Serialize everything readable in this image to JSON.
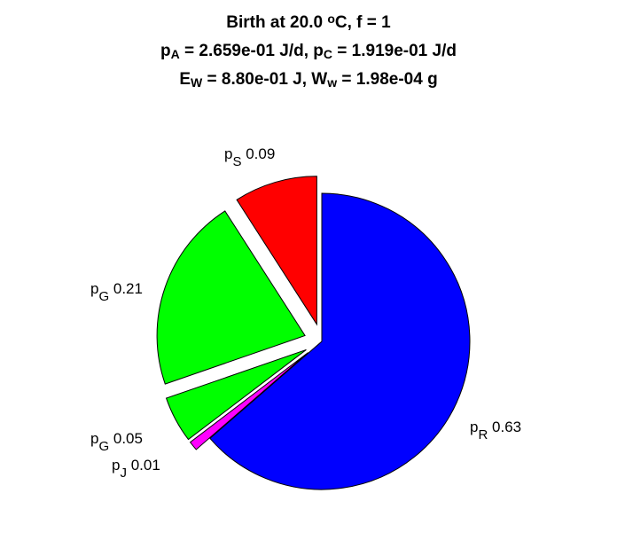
{
  "chart_data": {
    "type": "pie",
    "title_lines": [
      [
        {
          "t": "Birth at 20.0 "
        },
        {
          "t": "o",
          "sup": true
        },
        {
          "t": "C, f = 1"
        }
      ],
      [
        {
          "t": "p"
        },
        {
          "t": "A",
          "sub": true
        },
        {
          "t": " = 2.659e-01 J/d, p"
        },
        {
          "t": "C",
          "sub": true
        },
        {
          "t": " = 1.919e-01 J/d"
        }
      ],
      [
        {
          "t": "E"
        },
        {
          "t": "W",
          "sub": true
        },
        {
          "t": " = 8.80e-01 J, W"
        },
        {
          "t": "w",
          "sub": true
        },
        {
          "t": " = 1.98e-04 g"
        }
      ]
    ],
    "slices": [
      {
        "symbol": "p",
        "sub": "R",
        "value_label": "0.63",
        "value": 0.63,
        "color": "#0000ff",
        "exploded": false
      },
      {
        "symbol": "p",
        "sub": "J",
        "value_label": "0.01",
        "value": 0.01,
        "color": "#ff00ff",
        "exploded": true
      },
      {
        "symbol": "p",
        "sub": "G",
        "value_label": "0.05",
        "value": 0.05,
        "color": "#00ff00",
        "exploded": true
      },
      {
        "symbol": "p",
        "sub": "G",
        "value_label": "0.21",
        "value": 0.21,
        "color": "#00ff00",
        "exploded": true
      },
      {
        "symbol": "p",
        "sub": "S",
        "value_label": "0.09",
        "value": 0.09,
        "color": "#ff0000",
        "exploded": true
      }
    ]
  }
}
